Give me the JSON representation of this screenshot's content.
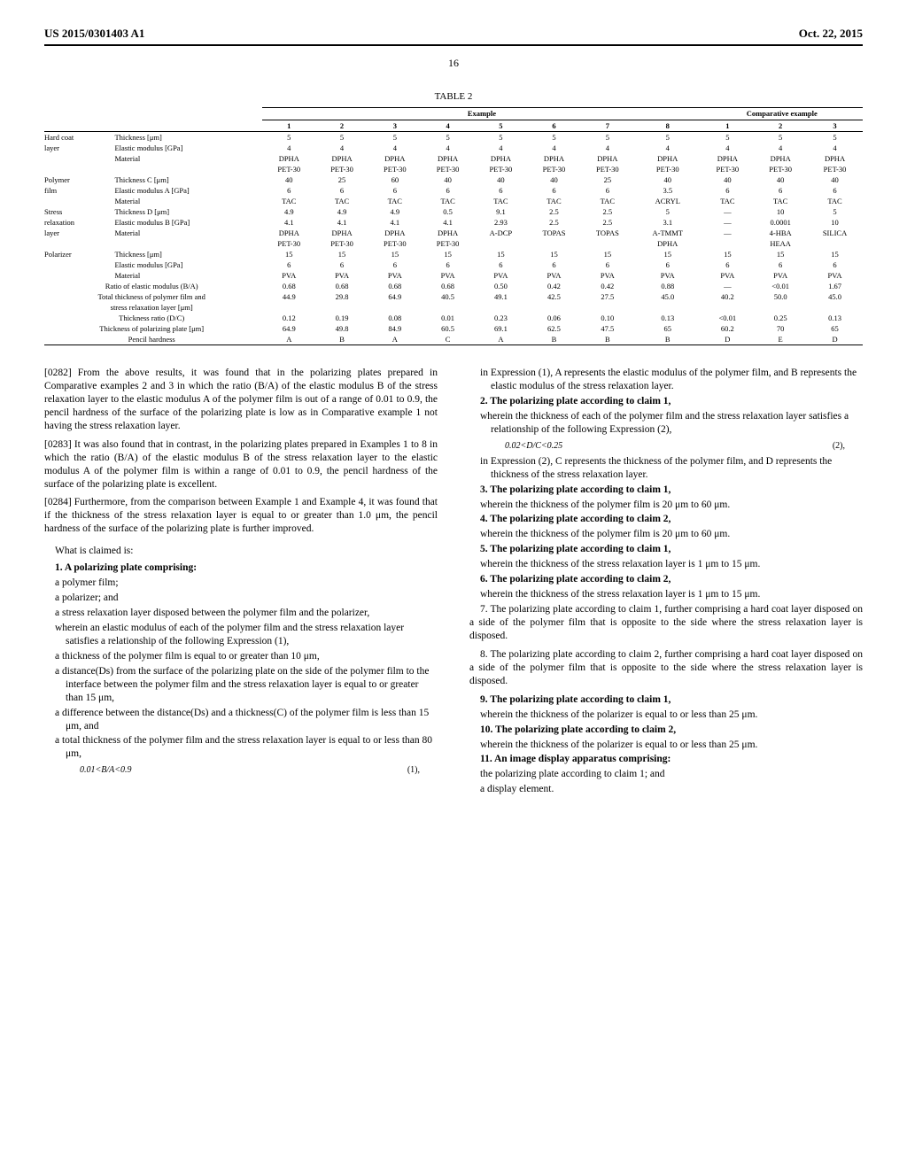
{
  "header": {
    "left": "US 2015/0301403 A1",
    "right": "Oct. 22, 2015"
  },
  "page_number": "16",
  "table": {
    "caption": "TABLE 2",
    "group_headers": {
      "example": "Example",
      "comparative": "Comparative example"
    },
    "col_nums": [
      "1",
      "2",
      "3",
      "4",
      "5",
      "6",
      "7",
      "8",
      "1",
      "2",
      "3"
    ],
    "rows": [
      {
        "g": "Hard coat",
        "l": "Thickness [μm]",
        "v": [
          "5",
          "5",
          "5",
          "5",
          "5",
          "5",
          "5",
          "5",
          "5",
          "5",
          "5"
        ]
      },
      {
        "g": "layer",
        "l": "Elastic modulus [GPa]",
        "v": [
          "4",
          "4",
          "4",
          "4",
          "4",
          "4",
          "4",
          "4",
          "4",
          "4",
          "4"
        ]
      },
      {
        "g": "",
        "l": "Material",
        "v": [
          "DPHA",
          "DPHA",
          "DPHA",
          "DPHA",
          "DPHA",
          "DPHA",
          "DPHA",
          "DPHA",
          "DPHA",
          "DPHA",
          "DPHA"
        ]
      },
      {
        "g": "",
        "l": "",
        "v": [
          "PET-30",
          "PET-30",
          "PET-30",
          "PET-30",
          "PET-30",
          "PET-30",
          "PET-30",
          "PET-30",
          "PET-30",
          "PET-30",
          "PET-30"
        ]
      },
      {
        "g": "Polymer",
        "l": "Thickness C [μm]",
        "v": [
          "40",
          "25",
          "60",
          "40",
          "40",
          "40",
          "25",
          "40",
          "40",
          "40",
          "40"
        ]
      },
      {
        "g": "film",
        "l": "Elastic modulus A [GPa]",
        "v": [
          "6",
          "6",
          "6",
          "6",
          "6",
          "6",
          "6",
          "3.5",
          "6",
          "6",
          "6"
        ]
      },
      {
        "g": "",
        "l": "Material",
        "v": [
          "TAC",
          "TAC",
          "TAC",
          "TAC",
          "TAC",
          "TAC",
          "TAC",
          "ACRYL",
          "TAC",
          "TAC",
          "TAC"
        ]
      },
      {
        "g": "Stress",
        "l": "Thickness D [μm]",
        "v": [
          "4.9",
          "4.9",
          "4.9",
          "0.5",
          "9.1",
          "2.5",
          "2.5",
          "5",
          "—",
          "10",
          "5"
        ]
      },
      {
        "g": "relaxation",
        "l": "Elastic modulus B [GPa]",
        "v": [
          "4.1",
          "4.1",
          "4.1",
          "4.1",
          "2.93",
          "2.5",
          "2.5",
          "3.1",
          "—",
          "0.0001",
          "10"
        ]
      },
      {
        "g": "layer",
        "l": "Material",
        "v": [
          "DPHA",
          "DPHA",
          "DPHA",
          "DPHA",
          "A-DCP",
          "TOPAS",
          "TOPAS",
          "A-TMMT",
          "—",
          "4-HBA",
          "SILICA"
        ]
      },
      {
        "g": "",
        "l": "",
        "v": [
          "PET-30",
          "PET-30",
          "PET-30",
          "PET-30",
          "",
          "",
          "",
          "DPHA",
          "",
          "HEAA",
          ""
        ]
      },
      {
        "g": "Polarizer",
        "l": "Thickness [μm]",
        "v": [
          "15",
          "15",
          "15",
          "15",
          "15",
          "15",
          "15",
          "15",
          "15",
          "15",
          "15"
        ]
      },
      {
        "g": "",
        "l": "Elastic modulus [GPa]",
        "v": [
          "6",
          "6",
          "6",
          "6",
          "6",
          "6",
          "6",
          "6",
          "6",
          "6",
          "6"
        ]
      },
      {
        "g": "",
        "l": "Material",
        "v": [
          "PVA",
          "PVA",
          "PVA",
          "PVA",
          "PVA",
          "PVA",
          "PVA",
          "PVA",
          "PVA",
          "PVA",
          "PVA"
        ]
      },
      {
        "span": "Ratio of elastic modulus (B/A)",
        "v": [
          "0.68",
          "0.68",
          "0.68",
          "0.68",
          "0.50",
          "0.42",
          "0.42",
          "0.88",
          "—",
          "<0.01",
          "1.67"
        ]
      },
      {
        "span": "Total thickness of polymer film and",
        "v": [
          "44.9",
          "29.8",
          "64.9",
          "40.5",
          "49.1",
          "42.5",
          "27.5",
          "45.0",
          "40.2",
          "50.0",
          "45.0"
        ]
      },
      {
        "span": "stress relaxation layer [μm]",
        "v": [
          "",
          "",
          "",
          "",
          "",
          "",
          "",
          "",
          "",
          "",
          ""
        ]
      },
      {
        "span": "Thickness ratio (D/C)",
        "v": [
          "0.12",
          "0.19",
          "0.08",
          "0.01",
          "0.23",
          "0.06",
          "0.10",
          "0.13",
          "<0.01",
          "0.25",
          "0.13"
        ]
      },
      {
        "span": "Thickness of polarizing plate [μm]",
        "v": [
          "64.9",
          "49.8",
          "84.9",
          "60.5",
          "69.1",
          "62.5",
          "47.5",
          "65",
          "60.2",
          "70",
          "65"
        ]
      },
      {
        "span": "Pencil hardness",
        "v": [
          "A",
          "B",
          "A",
          "C",
          "A",
          "B",
          "B",
          "B",
          "D",
          "E",
          "D"
        ]
      }
    ]
  },
  "body": {
    "p0282": "[0282]   From the above results, it was found that in the polarizing plates prepared in Comparative examples 2 and 3 in which the ratio (B/A) of the elastic modulus B of the stress relaxation layer to the elastic modulus A of the polymer film is out of a range of 0.01 to 0.9, the pencil hardness of the surface of the polarizing plate is low as in Comparative example 1 not having the stress relaxation layer.",
    "p0283": "[0283]   It was also found that in contrast, in the polarizing plates prepared in Examples 1 to 8 in which the ratio (B/A) of the elastic modulus B of the stress relaxation layer to the elastic modulus A of the polymer film is within a range of 0.01 to 0.9, the pencil hardness of the surface of the polarizing plate is excellent.",
    "p0284": "[0284]   Furthermore, from the comparison between Example 1 and Example 4, it was found that if the thickness of the stress relaxation layer is equal to or greater than 1.0 μm, the pencil hardness of the surface of the polarizing plate is further improved.",
    "claims_intro": "What is claimed is:",
    "c1_head": "1. A polarizing plate comprising:",
    "c1_a": "a polymer film;",
    "c1_b": "a polarizer; and",
    "c1_c": "a stress relaxation layer disposed between the polymer film and the polarizer,",
    "c1_d": "wherein an elastic modulus of each of the polymer film and the stress relaxation layer satisfies a relationship of the following Expression (1),",
    "c1_e": "a thickness of the polymer film is equal to or greater than 10 μm,",
    "c1_f": "a distance(Ds) from the surface of the polarizing plate on the side of the polymer film to the interface between the polymer film and the stress relaxation layer is equal to or greater than 15 μm,",
    "c1_g": "a difference between the distance(Ds) and a thickness(C) of the polymer film is less than 15 μm, and",
    "c1_h": "a total thickness of the polymer film and the stress relaxation layer is equal to or less than 80 μm,",
    "eq1": "0.01<B/A<0.9",
    "eq1n": "(1),",
    "c1_tail": "in Expression (1), A represents the elastic modulus of the polymer film, and B represents the elastic modulus of the stress relaxation layer.",
    "c2_head": "2. The polarizing plate according to claim 1,",
    "c2_body": "wherein the thickness of each of the polymer film and the stress relaxation layer satisfies a relationship of the following Expression (2),",
    "eq2": "0.02<D/C<0.25",
    "eq2n": "(2),",
    "c2_tail": "in Expression (2), C represents the thickness of the polymer film, and D represents the thickness of the stress relaxation layer.",
    "c3_head": "3. The polarizing plate according to claim 1,",
    "c3_body": "wherein the thickness of the polymer film is 20 μm to 60 μm.",
    "c4_head": "4. The polarizing plate according to claim 2,",
    "c4_body": "wherein the thickness of the polymer film is 20 μm to 60 μm.",
    "c5_head": "5. The polarizing plate according to claim 1,",
    "c5_body": "wherein the thickness of the stress relaxation layer is 1 μm to 15 μm.",
    "c6_head": "6. The polarizing plate according to claim 2,",
    "c6_body": "wherein the thickness of the stress relaxation layer is 1 μm to 15 μm.",
    "c7": "7. The polarizing plate according to claim 1, further comprising a hard coat layer disposed on a side of the polymer film that is opposite to the side where the stress relaxation layer is disposed.",
    "c8": "8. The polarizing plate according to claim 2, further comprising a hard coat layer disposed on a side of the polymer film that is opposite to the side where the stress relaxation layer is disposed.",
    "c9_head": "9. The polarizing plate according to claim 1,",
    "c9_body": "wherein the thickness of the polarizer is equal to or less than 25 μm.",
    "c10_head": "10. The polarizing plate according to claim 2,",
    "c10_body": "wherein the thickness of the polarizer is equal to or less than 25 μm.",
    "c11_head": "11. An image display apparatus comprising:",
    "c11_a": "the polarizing plate according to claim 1; and",
    "c11_b": "a display element."
  }
}
